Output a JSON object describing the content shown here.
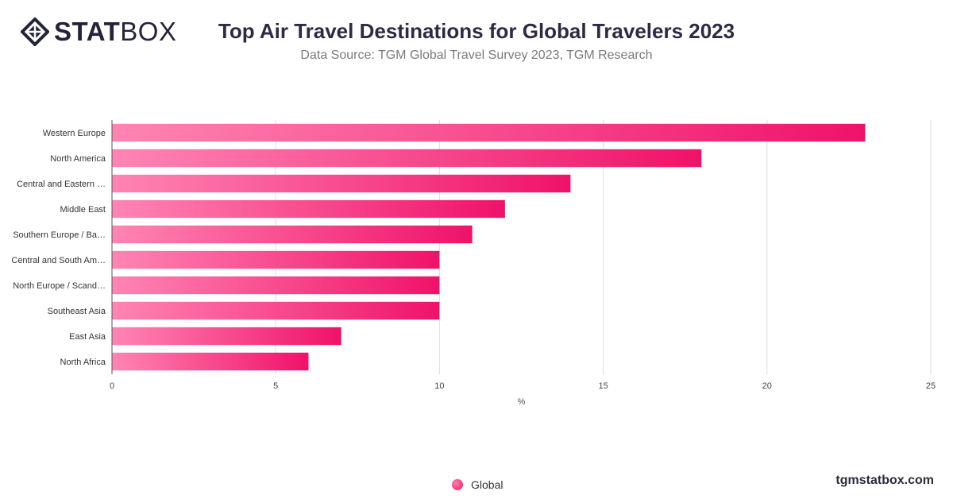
{
  "header": {
    "logo_strong": "STAT",
    "logo_light": "BOX",
    "title": "Top Air Travel Destinations for Global Travelers 2023",
    "subtitle": "Data Source: TGM Global Travel Survey 2023, TGM Research"
  },
  "legend": {
    "label": "Global"
  },
  "footer": {
    "site": "tgmstatbox.com"
  },
  "colors": {
    "bar_start": "#ff85b3",
    "bar_end": "#f0126a",
    "grid": "#dddddd",
    "axis": "#555555"
  },
  "chart_data": {
    "type": "bar",
    "orientation": "horizontal",
    "title": "Top Air Travel Destinations for Global Travelers 2023",
    "subtitle": "Data Source: TGM Global Travel Survey 2023, TGM Research",
    "categories": [
      "Western Europe",
      "North America",
      "Central and Eastern …",
      "Middle East",
      "Southern Europe / Ba…",
      "Central and South Am…",
      "North Europe / Scand…",
      "Southeast Asia",
      "East Asia",
      "North Africa"
    ],
    "series": [
      {
        "name": "Global",
        "values": [
          23,
          18,
          14,
          12,
          11,
          10,
          10,
          10,
          7,
          6
        ]
      }
    ],
    "xlabel": "%",
    "ylabel": "",
    "xlim": [
      0,
      25
    ],
    "xticks": [
      0,
      5,
      10,
      15,
      20,
      25
    ],
    "grid": true,
    "legend_position": "bottom-center"
  }
}
